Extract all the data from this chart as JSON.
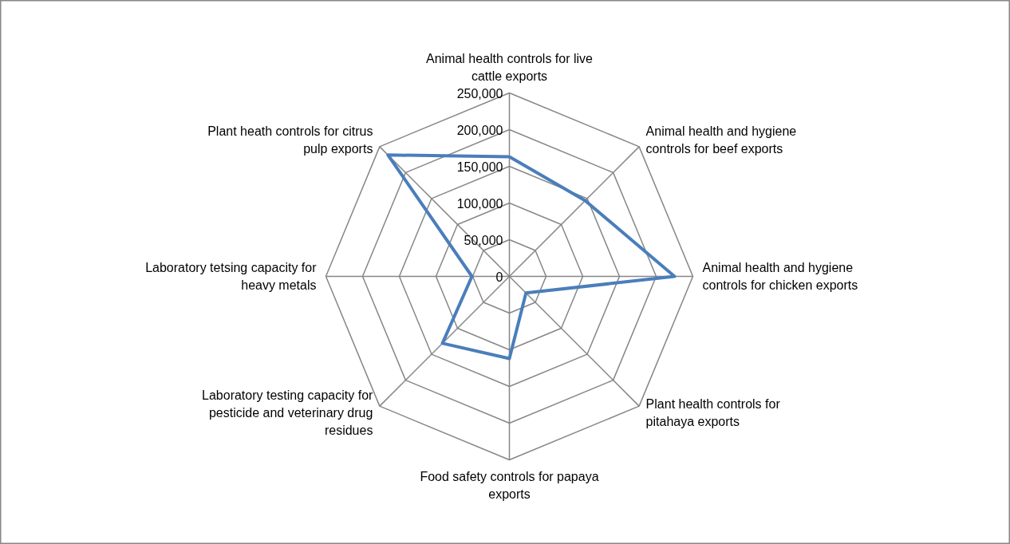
{
  "chart_data": {
    "type": "radar",
    "categories": [
      "Animal health controls for live cattle exports",
      "Animal health and hygiene controls for beef exports",
      "Animal health and hygiene controls for chicken exports",
      "Plant health controls for pitahaya exports",
      "Food safety controls for papaya exports",
      "Laboratory testing capacity for pesticide and veterinary drug residues",
      "Laboratory tetsing capacity for heavy metals",
      "Plant heath controls for citrus pulp exports"
    ],
    "series": [
      {
        "color": "#4a7ebb",
        "values": [
          163000,
          146000,
          225000,
          32000,
          112000,
          129000,
          51000,
          234000
        ]
      }
    ],
    "ylim": [
      0,
      250000
    ],
    "yticks": [
      {
        "value": 0,
        "label": "0"
      },
      {
        "value": 50000,
        "label": "50,000"
      },
      {
        "value": 100000,
        "label": "100,000"
      },
      {
        "value": 150000,
        "label": "150,000"
      },
      {
        "value": 200000,
        "label": "200,000"
      },
      {
        "value": 250000,
        "label": "250,000"
      }
    ],
    "grid": true,
    "marker": "none",
    "line_style": "solid"
  }
}
